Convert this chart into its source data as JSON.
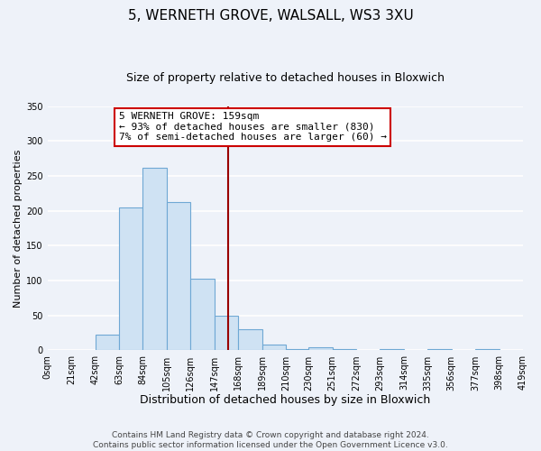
{
  "title": "5, WERNETH GROVE, WALSALL, WS3 3XU",
  "subtitle": "Size of property relative to detached houses in Bloxwich",
  "xlabel": "Distribution of detached houses by size in Bloxwich",
  "ylabel": "Number of detached properties",
  "bar_edges": [
    0,
    21,
    42,
    63,
    84,
    105,
    126,
    147,
    168,
    189,
    210,
    230,
    251,
    272,
    293,
    314,
    335,
    356,
    377,
    398,
    419
  ],
  "bar_heights": [
    0,
    0,
    22,
    205,
    262,
    213,
    103,
    50,
    30,
    9,
    2,
    4,
    2,
    0,
    2,
    0,
    2,
    0,
    2,
    0
  ],
  "bar_color": "#cfe2f3",
  "bar_edge_color": "#6fa8d4",
  "property_line_x": 159,
  "property_line_color": "#990000",
  "annotation_title": "5 WERNETH GROVE: 159sqm",
  "annotation_line1": "← 93% of detached houses are smaller (830)",
  "annotation_line2": "7% of semi-detached houses are larger (60) →",
  "annotation_box_facecolor": "#ffffff",
  "annotation_box_edgecolor": "#cc0000",
  "xlim": [
    0,
    419
  ],
  "ylim": [
    0,
    350
  ],
  "yticks": [
    0,
    50,
    100,
    150,
    200,
    250,
    300,
    350
  ],
  "xtick_labels": [
    "0sqm",
    "21sqm",
    "42sqm",
    "63sqm",
    "84sqm",
    "105sqm",
    "126sqm",
    "147sqm",
    "168sqm",
    "189sqm",
    "210sqm",
    "230sqm",
    "251sqm",
    "272sqm",
    "293sqm",
    "314sqm",
    "335sqm",
    "356sqm",
    "377sqm",
    "398sqm",
    "419sqm"
  ],
  "xtick_positions": [
    0,
    21,
    42,
    63,
    84,
    105,
    126,
    147,
    168,
    189,
    210,
    230,
    251,
    272,
    293,
    314,
    335,
    356,
    377,
    398,
    419
  ],
  "footer1": "Contains HM Land Registry data © Crown copyright and database right 2024.",
  "footer2": "Contains public sector information licensed under the Open Government Licence v3.0.",
  "background_color": "#eef2f9",
  "grid_color": "#ffffff",
  "title_fontsize": 11,
  "subtitle_fontsize": 9,
  "xlabel_fontsize": 9,
  "ylabel_fontsize": 8,
  "tick_fontsize": 7,
  "annotation_fontsize": 8,
  "footer_fontsize": 6.5
}
